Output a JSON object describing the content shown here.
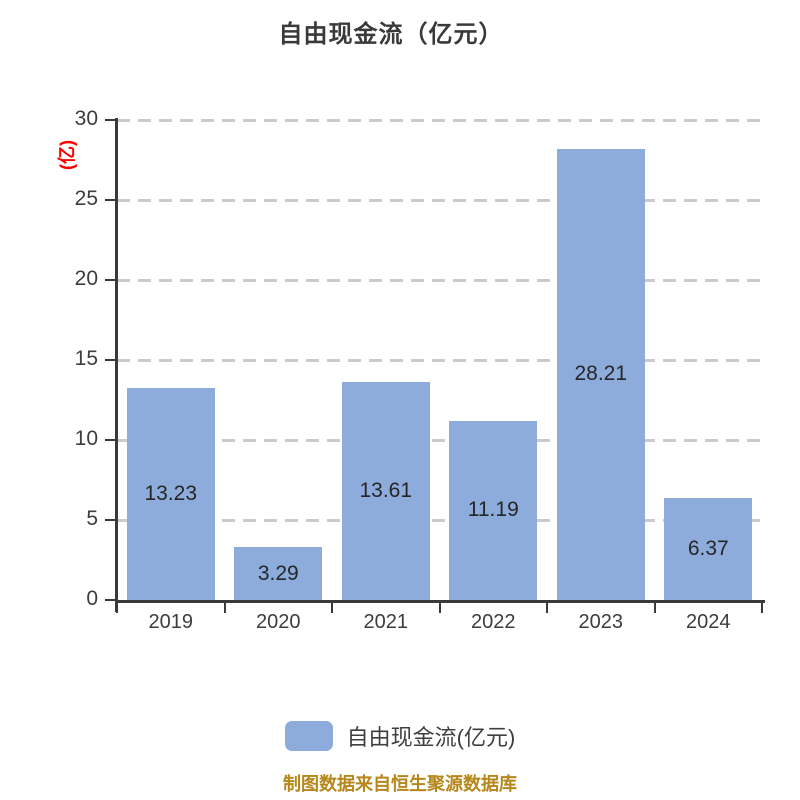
{
  "chart_data": {
    "type": "bar",
    "title": "自由现金流（亿元）",
    "y_unit_label": "(亿)",
    "categories": [
      "2019",
      "2020",
      "2021",
      "2022",
      "2023",
      "2024"
    ],
    "values": [
      13.23,
      3.29,
      13.61,
      11.19,
      28.21,
      6.37
    ],
    "value_labels": [
      "13.23",
      "3.29",
      "13.61",
      "11.19",
      "28.21",
      "6.37"
    ],
    "ylim": [
      0,
      30
    ],
    "y_ticks": [
      0,
      5,
      10,
      15,
      20,
      25,
      30
    ],
    "xlabel": "",
    "ylabel": "(亿)",
    "grid": "horizontal dashed",
    "legend_position": "bottom"
  },
  "legend": {
    "label": "自由现金流(亿元)"
  },
  "footer": {
    "text": "制图数据来自恒生聚源数据库"
  },
  "colors": {
    "bar_fill": "#8dacdc",
    "title_text": "#3a3a3a",
    "axis_line": "#3a3a3a",
    "tick_text": "#3d3d3d",
    "value_text": "#262626",
    "gridline": "#cbcbcb",
    "y_unit_text": "#fe0000",
    "footer_text": "#b6871b",
    "background": "#ffffff"
  }
}
